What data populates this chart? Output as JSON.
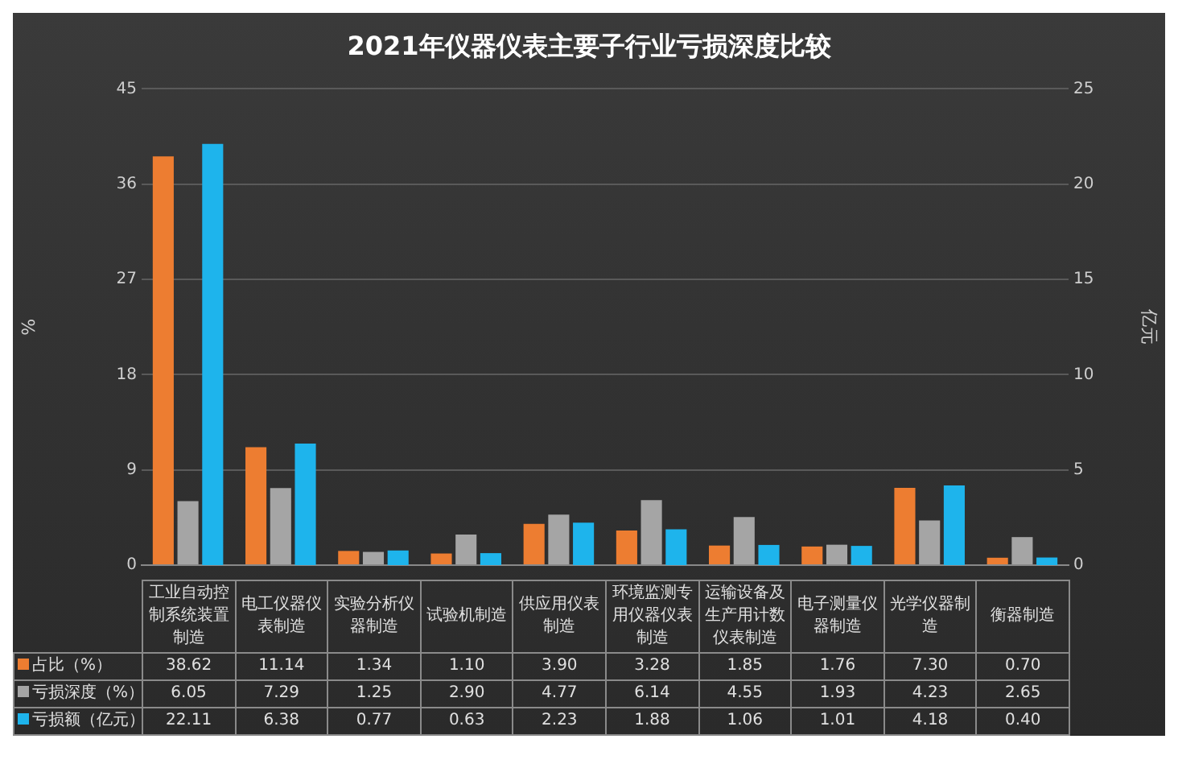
{
  "chart_data": {
    "type": "bar",
    "title": "2021年仪器仪表主要子行业亏损深度比较",
    "ylabel": "%",
    "y2label": "亿元",
    "categories": [
      "工业自动控制系统装置制造",
      "电工仪器仪表制造",
      "实验分析仪器制造",
      "试验机制造",
      "供应用仪表制造",
      "环境监测专用仪器仪表制造",
      "运输设备及生产用计数仪表制造",
      "电子测量仪器制造",
      "光学仪器制造",
      "衡器制造"
    ],
    "series": [
      {
        "name": "占比（%）",
        "color": "#ed7d31",
        "values": [
          38.62,
          11.14,
          1.34,
          1.1,
          3.9,
          3.28,
          1.85,
          1.76,
          7.3,
          0.7
        ],
        "value_labels": [
          "38.62",
          "11.14",
          "1.34",
          "1.10",
          "3.90",
          "3.28",
          "1.85",
          "1.76",
          "7.30",
          "0.70"
        ]
      },
      {
        "name": "亏损深度（%）",
        "color": "#a5a5a5",
        "values": [
          6.05,
          7.29,
          1.25,
          2.9,
          4.77,
          6.14,
          4.55,
          1.93,
          4.23,
          2.65
        ],
        "value_labels": [
          "6.05",
          "7.29",
          "1.25",
          "2.90",
          "4.77",
          "6.14",
          "4.55",
          "1.93",
          "4.23",
          "2.65"
        ]
      },
      {
        "name": "亏损额（亿元）",
        "color": "#1eb4ec",
        "axis": "y2",
        "values": [
          22.11,
          6.38,
          0.77,
          0.63,
          2.23,
          1.88,
          1.06,
          1.01,
          4.18,
          0.4
        ],
        "value_labels": [
          "22.11",
          "6.38",
          "0.77",
          "0.63",
          "2.23",
          "1.88",
          "1.06",
          "1.01",
          "4.18",
          "0.40"
        ]
      }
    ],
    "ylim": [
      0,
      45
    ],
    "yticks": [
      0,
      9,
      18,
      27,
      36,
      45
    ],
    "y2lim": [
      0,
      25
    ],
    "y2ticks": [
      0,
      5,
      10,
      15,
      20,
      25
    ],
    "grid": "y",
    "legend": "bottom"
  }
}
